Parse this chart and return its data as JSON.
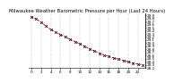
{
  "title": "Milwaukee Weather Barometric Pressure per Hour (Last 24 Hours)",
  "hours": [
    0,
    1,
    2,
    3,
    4,
    5,
    6,
    7,
    8,
    9,
    10,
    11,
    12,
    13,
    14,
    15,
    16,
    17,
    18,
    19,
    20,
    21,
    22,
    23
  ],
  "pressure": [
    29.85,
    29.78,
    29.68,
    29.55,
    29.44,
    29.35,
    29.28,
    29.2,
    29.12,
    29.05,
    28.98,
    28.9,
    28.82,
    28.75,
    28.68,
    28.62,
    28.57,
    28.52,
    28.48,
    28.44,
    28.4,
    28.36,
    28.33,
    28.3
  ],
  "line_color": "#dd0000",
  "marker_color": "#000000",
  "bg_color": "#ffffff",
  "grid_color": "#888888",
  "ylim_min": 28.2,
  "ylim_max": 29.95,
  "title_fontsize": 3.8,
  "tick_fontsize": 3.0,
  "ytick_step": 0.1,
  "xtick_step": 2
}
